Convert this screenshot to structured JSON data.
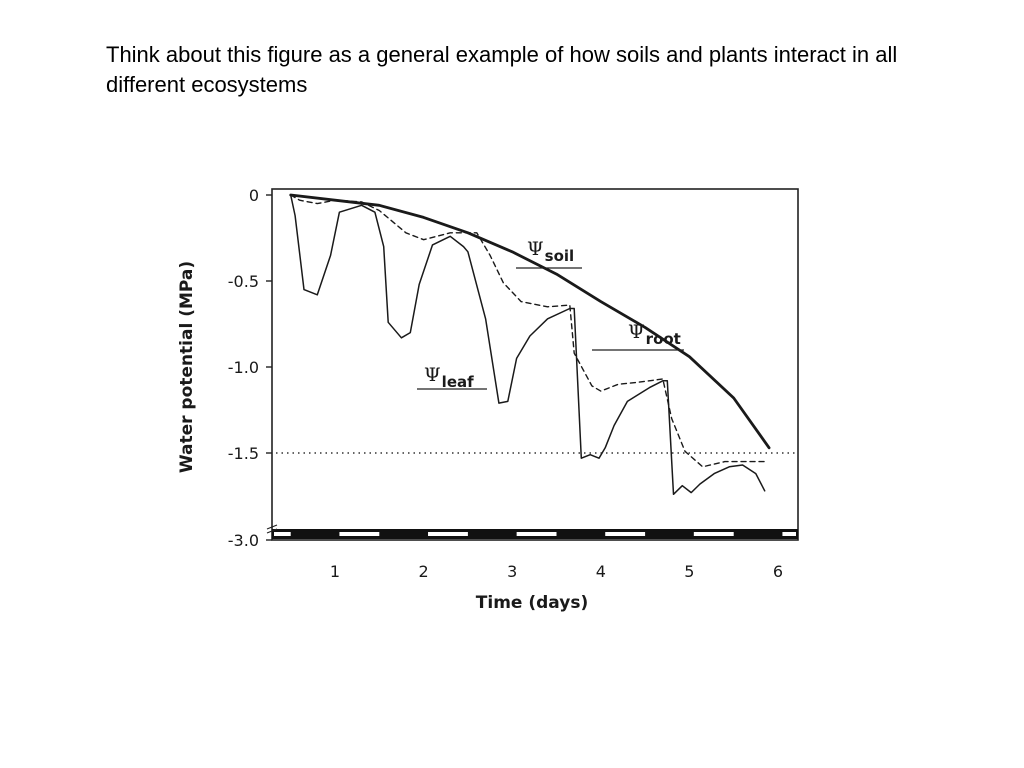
{
  "slide": {
    "caption": "Think about this figure as a general example of how soils and plants interact in all different ecosystems"
  },
  "chart_data": {
    "type": "line",
    "title": "",
    "xlabel": "Time (days)",
    "ylabel": "Water potential (MPa)",
    "xlim": [
      0.2,
      6.2
    ],
    "y_ticks": [
      "0",
      "-0.5",
      "-1.0",
      "-1.5",
      "-3.0"
    ],
    "x_ticks": [
      "1",
      "2",
      "3",
      "4",
      "5",
      "6"
    ],
    "axis_break": true,
    "day_night_bar": true,
    "reference_line": {
      "y": -1.5,
      "style": "dotted"
    },
    "series": [
      {
        "name": "Ψsoil",
        "symbol": "Ψ",
        "subscript": "soil",
        "style": "solid-thick",
        "x": [
          0.5,
          1.0,
          1.5,
          2.0,
          2.5,
          3.0,
          3.5,
          4.0,
          4.5,
          5.0,
          5.5,
          5.9
        ],
        "y": [
          0.0,
          -0.03,
          -0.06,
          -0.13,
          -0.22,
          -0.33,
          -0.46,
          -0.62,
          -0.77,
          -0.94,
          -1.18,
          -1.47
        ]
      },
      {
        "name": "Ψroot",
        "symbol": "Ψ",
        "subscript": "root",
        "style": "dashed",
        "x": [
          0.5,
          0.6,
          0.8,
          1.0,
          1.3,
          1.5,
          1.8,
          2.0,
          2.3,
          2.6,
          2.75,
          2.9,
          3.1,
          3.4,
          3.65,
          3.7,
          3.9,
          4.0,
          4.2,
          4.4,
          4.7,
          4.8,
          4.95,
          5.15,
          5.4,
          5.65,
          5.85
        ],
        "y": [
          0.0,
          -0.03,
          -0.05,
          -0.03,
          -0.04,
          -0.09,
          -0.22,
          -0.26,
          -0.22,
          -0.22,
          -0.35,
          -0.51,
          -0.62,
          -0.65,
          -0.64,
          -0.92,
          -1.11,
          -1.14,
          -1.1,
          -1.09,
          -1.07,
          -1.3,
          -1.49,
          -1.58,
          -1.55,
          -1.55,
          -1.55
        ]
      },
      {
        "name": "Ψleaf",
        "symbol": "Ψ",
        "subscript": "leaf",
        "style": "solid",
        "x": [
          0.5,
          0.55,
          0.65,
          0.8,
          0.95,
          1.05,
          1.3,
          1.45,
          1.55,
          1.6,
          1.75,
          1.85,
          1.95,
          2.1,
          2.3,
          2.45,
          2.5,
          2.7,
          2.85,
          2.95,
          3.05,
          3.2,
          3.4,
          3.65,
          3.7,
          3.78,
          3.88,
          3.98,
          4.05,
          4.15,
          4.3,
          4.55,
          4.7,
          4.75,
          4.82,
          4.92,
          5.02,
          5.12,
          5.28,
          5.45,
          5.6,
          5.75,
          5.85
        ],
        "y": [
          0.0,
          -0.12,
          -0.55,
          -0.58,
          -0.35,
          -0.1,
          -0.06,
          -0.1,
          -0.3,
          -0.74,
          -0.83,
          -0.8,
          -0.52,
          -0.29,
          -0.24,
          -0.3,
          -0.33,
          -0.72,
          -1.21,
          -1.2,
          -0.95,
          -0.82,
          -0.72,
          -0.66,
          -0.66,
          -1.53,
          -1.51,
          -1.53,
          -1.47,
          -1.34,
          -1.2,
          -1.12,
          -1.08,
          -1.08,
          -1.74,
          -1.69,
          -1.73,
          -1.68,
          -1.62,
          -1.58,
          -1.57,
          -1.62,
          -1.72
        ]
      }
    ]
  }
}
